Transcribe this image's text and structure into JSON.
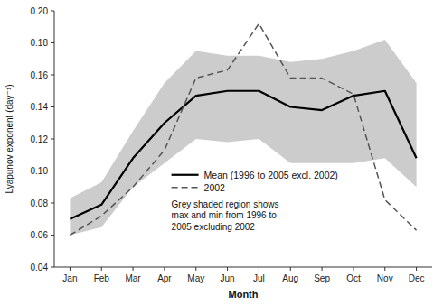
{
  "chart_data": {
    "type": "line",
    "xlabel": "Month",
    "ylabel": "Lyapunov exponent (day⁻¹)",
    "categories": [
      "Jan",
      "Feb",
      "Mar",
      "Apr",
      "May",
      "Jun",
      "Jul",
      "Aug",
      "Sep",
      "Oct",
      "Nov",
      "Dec"
    ],
    "series": [
      {
        "name": "Mean (1996 to 2005 excl. 2002)",
        "color": "#000000",
        "line_style": "solid",
        "values": [
          0.07,
          0.079,
          0.108,
          0.13,
          0.147,
          0.15,
          0.15,
          0.14,
          0.138,
          0.147,
          0.15,
          0.108
        ]
      },
      {
        "name": "2002",
        "color": "#555555",
        "line_style": "dashed",
        "values": [
          0.06,
          0.072,
          0.09,
          0.113,
          0.158,
          0.163,
          0.192,
          0.158,
          0.158,
          0.148,
          0.082,
          0.063
        ]
      }
    ],
    "band": {
      "color": "#cccccc",
      "upper": [
        0.083,
        0.093,
        0.125,
        0.155,
        0.175,
        0.172,
        0.172,
        0.168,
        0.17,
        0.175,
        0.182,
        0.155
      ],
      "lower": [
        0.06,
        0.065,
        0.09,
        0.105,
        0.12,
        0.118,
        0.12,
        0.105,
        0.105,
        0.105,
        0.108,
        0.09
      ]
    },
    "annotations": [
      "Grey shaded region shows\nmax and min from 1996 to\n2005 excluding 2002"
    ],
    "ylim": [
      0.04,
      0.2
    ],
    "yticks": [
      0.04,
      0.06,
      0.08,
      {
        "value": 0.1,
        "label": "0.10"
      },
      0.12,
      0.14,
      0.16,
      0.18,
      {
        "value": 0.2,
        "label": "0.20"
      }
    ],
    "grid": false,
    "legend": "lower center"
  }
}
